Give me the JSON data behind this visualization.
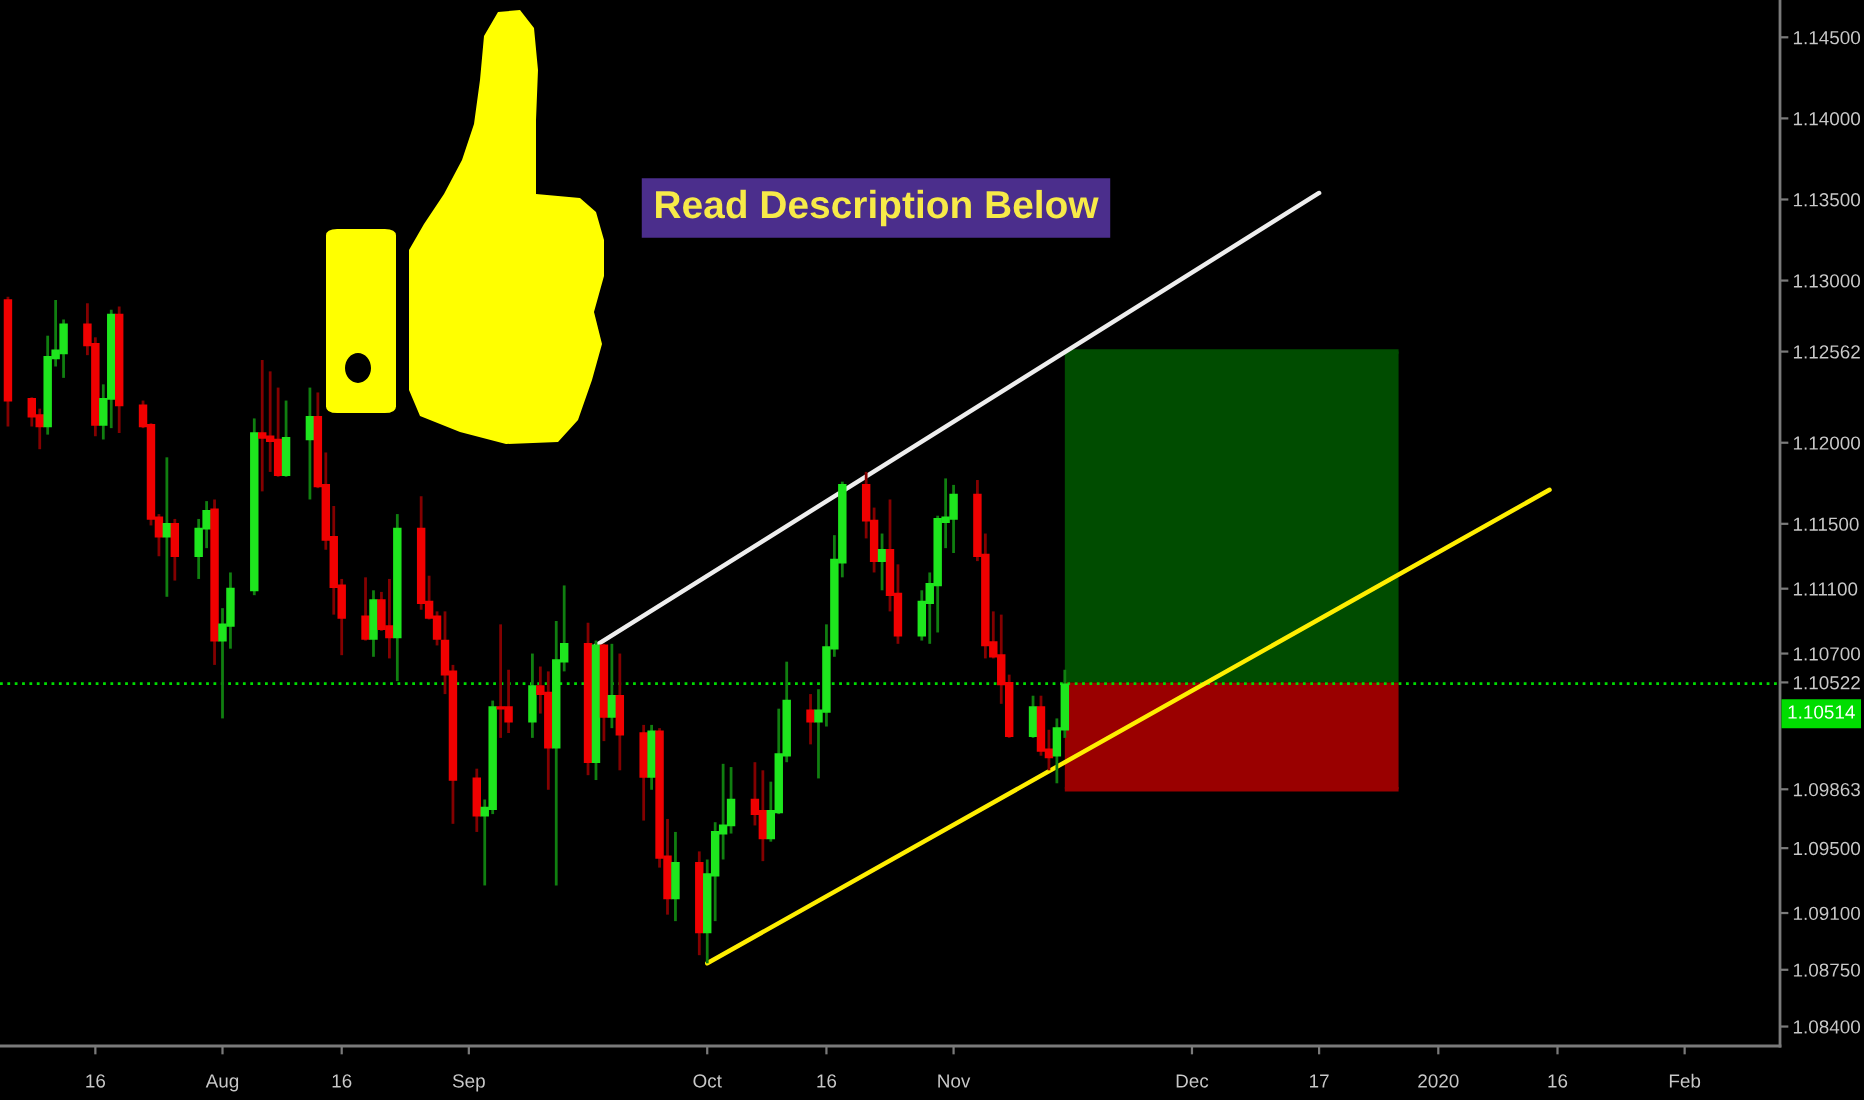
{
  "chart_data": {
    "type": "candlestick",
    "x": [
      "2019-07-05",
      "2019-07-08",
      "2019-07-09",
      "2019-07-10",
      "2019-07-11",
      "2019-07-12",
      "2019-07-15",
      "2019-07-16",
      "2019-07-17",
      "2019-07-18",
      "2019-07-19",
      "2019-07-22",
      "2019-07-23",
      "2019-07-24",
      "2019-07-25",
      "2019-07-26",
      "2019-07-29",
      "2019-07-30",
      "2019-07-31",
      "2019-08-01",
      "2019-08-02",
      "2019-08-05",
      "2019-08-06",
      "2019-08-07",
      "2019-08-08",
      "2019-08-09",
      "2019-08-12",
      "2019-08-13",
      "2019-08-14",
      "2019-08-15",
      "2019-08-16",
      "2019-08-19",
      "2019-08-20",
      "2019-08-21",
      "2019-08-22",
      "2019-08-23",
      "2019-08-26",
      "2019-08-27",
      "2019-08-28",
      "2019-08-29",
      "2019-08-30",
      "2019-09-02",
      "2019-09-03",
      "2019-09-04",
      "2019-09-05",
      "2019-09-06",
      "2019-09-09",
      "2019-09-10",
      "2019-09-11",
      "2019-09-12",
      "2019-09-13",
      "2019-09-16",
      "2019-09-17",
      "2019-09-18",
      "2019-09-19",
      "2019-09-20",
      "2019-09-23",
      "2019-09-24",
      "2019-09-25",
      "2019-09-26",
      "2019-09-27",
      "2019-09-30",
      "2019-10-01",
      "2019-10-02",
      "2019-10-03",
      "2019-10-04",
      "2019-10-07",
      "2019-10-08",
      "2019-10-09",
      "2019-10-10",
      "2019-10-11",
      "2019-10-14",
      "2019-10-15",
      "2019-10-16",
      "2019-10-17",
      "2019-10-18",
      "2019-10-21",
      "2019-10-22",
      "2019-10-23",
      "2019-10-24",
      "2019-10-25",
      "2019-10-28",
      "2019-10-29",
      "2019-10-30",
      "2019-10-31",
      "2019-11-01",
      "2019-11-04",
      "2019-11-05",
      "2019-11-06",
      "2019-11-07",
      "2019-11-08",
      "2019-11-11",
      "2019-11-12",
      "2019-11-13",
      "2019-11-14",
      "2019-11-15"
    ],
    "ohlc": [
      [
        1.1288,
        1.129,
        1.121,
        1.1226
      ],
      [
        1.1227,
        1.1228,
        1.121,
        1.1216
      ],
      [
        1.1217,
        1.1221,
        1.1196,
        1.121
      ],
      [
        1.121,
        1.1266,
        1.1205,
        1.1253
      ],
      [
        1.1252,
        1.1288,
        1.1247,
        1.1257
      ],
      [
        1.1255,
        1.1276,
        1.124,
        1.1273
      ],
      [
        1.1273,
        1.1286,
        1.1254,
        1.126
      ],
      [
        1.1261,
        1.1265,
        1.1204,
        1.1211
      ],
      [
        1.1211,
        1.1236,
        1.1202,
        1.1227
      ],
      [
        1.1227,
        1.1282,
        1.1209,
        1.1279
      ],
      [
        1.1279,
        1.1284,
        1.1206,
        1.1223
      ],
      [
        1.1223,
        1.1226,
        1.1209,
        1.121
      ],
      [
        1.1211,
        1.1212,
        1.1149,
        1.1153
      ],
      [
        1.1154,
        1.1156,
        1.113,
        1.1142
      ],
      [
        1.1142,
        1.1191,
        1.1105,
        1.115
      ],
      [
        1.115,
        1.1153,
        1.1115,
        1.113
      ],
      [
        1.113,
        1.1153,
        1.1116,
        1.1147
      ],
      [
        1.1147,
        1.1164,
        1.1135,
        1.1158
      ],
      [
        1.1159,
        1.1165,
        1.1063,
        1.1078
      ],
      [
        1.1078,
        1.1098,
        1.103,
        1.1088
      ],
      [
        1.1087,
        1.112,
        1.1073,
        1.111
      ],
      [
        1.1109,
        1.1215,
        1.1106,
        1.1206
      ],
      [
        1.1206,
        1.1251,
        1.117,
        1.1203
      ],
      [
        1.1204,
        1.1244,
        1.1182,
        1.1201
      ],
      [
        1.1202,
        1.1234,
        1.1179,
        1.118
      ],
      [
        1.118,
        1.1226,
        1.1179,
        1.1203
      ],
      [
        1.1202,
        1.1234,
        1.1165,
        1.1216
      ],
      [
        1.1216,
        1.1231,
        1.1172,
        1.1173
      ],
      [
        1.1174,
        1.1194,
        1.1134,
        1.114
      ],
      [
        1.1142,
        1.1161,
        1.1094,
        1.1111
      ],
      [
        1.1112,
        1.1116,
        1.1069,
        1.1092
      ],
      [
        1.1093,
        1.1117,
        1.1078,
        1.1079
      ],
      [
        1.1079,
        1.1109,
        1.1068,
        1.1103
      ],
      [
        1.1103,
        1.1108,
        1.1084,
        1.1085
      ],
      [
        1.1087,
        1.1116,
        1.1067,
        1.108
      ],
      [
        1.108,
        1.1156,
        1.1053,
        1.1147
      ],
      [
        1.1147,
        1.1167,
        1.1097,
        1.1101
      ],
      [
        1.1102,
        1.1118,
        1.1091,
        1.1092
      ],
      [
        1.1093,
        1.1096,
        1.1075,
        1.1079
      ],
      [
        1.1078,
        1.1096,
        1.1045,
        1.1057
      ],
      [
        1.1059,
        1.1063,
        1.0965,
        1.0992
      ],
      [
        1.0993,
        1.0999,
        1.096,
        1.097
      ],
      [
        1.097,
        1.098,
        1.0927,
        1.0975
      ],
      [
        1.0974,
        1.1041,
        1.0971,
        1.1037
      ],
      [
        1.1037,
        1.1088,
        1.1018,
        1.1036
      ],
      [
        1.1037,
        1.106,
        1.1021,
        1.1028
      ],
      [
        1.1028,
        1.107,
        1.1018,
        1.105
      ],
      [
        1.105,
        1.1062,
        1.1033,
        1.1045
      ],
      [
        1.1046,
        1.1059,
        1.0986,
        1.1012
      ],
      [
        1.1012,
        1.109,
        1.0927,
        1.1066
      ],
      [
        1.1065,
        1.1112,
        1.1059,
        1.1076
      ],
      [
        1.1076,
        1.1089,
        1.0995,
        1.1003
      ],
      [
        1.1003,
        1.1078,
        1.0992,
        1.1075
      ],
      [
        1.1075,
        1.1076,
        1.1016,
        1.1031
      ],
      [
        1.1031,
        1.1076,
        1.1024,
        1.1044
      ],
      [
        1.1044,
        1.107,
        1.0998,
        1.102
      ],
      [
        1.1021,
        1.1026,
        1.0967,
        1.0994
      ],
      [
        1.0994,
        1.1026,
        1.0986,
        1.1022
      ],
      [
        1.1022,
        1.1024,
        1.0938,
        1.0944
      ],
      [
        1.0945,
        1.0968,
        1.0909,
        1.0919
      ],
      [
        1.0919,
        1.096,
        1.0905,
        1.0941
      ],
      [
        1.0941,
        1.0948,
        1.0884,
        1.0898
      ],
      [
        1.0898,
        1.0943,
        1.0879,
        1.0934
      ],
      [
        1.0933,
        1.0966,
        1.0905,
        1.096
      ],
      [
        1.0959,
        1.1002,
        1.0943,
        1.0964
      ],
      [
        1.0964,
        1.1,
        1.0959,
        1.098
      ],
      [
        1.098,
        1.1003,
        1.0964,
        1.0971
      ],
      [
        1.0973,
        1.0998,
        1.0942,
        1.0956
      ],
      [
        1.0956,
        1.0991,
        1.0954,
        1.0973
      ],
      [
        1.0972,
        1.1036,
        1.0971,
        1.1008
      ],
      [
        1.1007,
        1.1065,
        1.1003,
        1.1041
      ],
      [
        1.1035,
        1.1045,
        1.1014,
        1.1028
      ],
      [
        1.1028,
        1.1048,
        1.0993,
        1.1035
      ],
      [
        1.1034,
        1.1088,
        1.1025,
        1.1074
      ],
      [
        1.1073,
        1.1143,
        1.1068,
        1.1128
      ],
      [
        1.1126,
        1.1176,
        1.1117,
        1.1174
      ],
      [
        1.1174,
        1.1182,
        1.1141,
        1.1152
      ],
      [
        1.1152,
        1.116,
        1.112,
        1.1127
      ],
      [
        1.1127,
        1.1144,
        1.1109,
        1.1134
      ],
      [
        1.1134,
        1.1165,
        1.1096,
        1.1106
      ],
      [
        1.1107,
        1.1125,
        1.1076,
        1.1081
      ],
      [
        1.1081,
        1.1109,
        1.1078,
        1.1102
      ],
      [
        1.1101,
        1.112,
        1.1076,
        1.1113
      ],
      [
        1.1112,
        1.1155,
        1.1083,
        1.1153
      ],
      [
        1.1151,
        1.1178,
        1.1135,
        1.1154
      ],
      [
        1.1153,
        1.1174,
        1.1132,
        1.1168
      ],
      [
        1.1168,
        1.1177,
        1.1127,
        1.113
      ],
      [
        1.1131,
        1.1144,
        1.1067,
        1.1075
      ],
      [
        1.1077,
        1.1096,
        1.1067,
        1.1068
      ],
      [
        1.1069,
        1.1094,
        1.1039,
        1.1051
      ],
      [
        1.1052,
        1.1057,
        1.1018,
        1.1019
      ],
      [
        1.1019,
        1.1044,
        1.1018,
        1.1037
      ],
      [
        1.1037,
        1.1044,
        1.1007,
        1.101
      ],
      [
        1.1011,
        1.1023,
        1.0998,
        1.1006
      ],
      [
        1.1007,
        1.103,
        1.099,
        1.1024
      ],
      [
        1.1023,
        1.106,
        1.1018,
        1.1051
      ]
    ],
    "colors": [
      "#f00000",
      "#f00000",
      "#f00000",
      "#1ee61e",
      "#1ee61e",
      "#1ee61e",
      "#f00000",
      "#f00000",
      "#1ee61e",
      "#1ee61e",
      "#f00000",
      "#f00000",
      "#f00000",
      "#f00000",
      "#1ee61e",
      "#f00000",
      "#1ee61e",
      "#1ee61e",
      "#f00000",
      "#1ee61e",
      "#1ee61e",
      "#1ee61e",
      "#f00000",
      "#f00000",
      "#f00000",
      "#1ee61e",
      "#1ee61e",
      "#f00000",
      "#f00000",
      "#f00000",
      "#f00000",
      "#f00000",
      "#1ee61e",
      "#f00000",
      "#f00000",
      "#1ee61e",
      "#f00000",
      "#f00000",
      "#f00000",
      "#f00000",
      "#f00000",
      "#f00000",
      "#1ee61e",
      "#1ee61e",
      "#f00000",
      "#f00000",
      "#1ee61e",
      "#f00000",
      "#f00000",
      "#1ee61e",
      "#1ee61e",
      "#f00000",
      "#1ee61e",
      "#f00000",
      "#1ee61e",
      "#f00000",
      "#f00000",
      "#1ee61e",
      "#f00000",
      "#f00000",
      "#1ee61e",
      "#f00000",
      "#1ee61e",
      "#1ee61e",
      "#1ee61e",
      "#1ee61e",
      "#f00000",
      "#f00000",
      "#1ee61e",
      "#1ee61e",
      "#1ee61e",
      "#f00000",
      "#1ee61e",
      "#1ee61e",
      "#1ee61e",
      "#1ee61e",
      "#f00000",
      "#f00000",
      "#1ee61e",
      "#f00000",
      "#f00000",
      "#1ee61e",
      "#1ee61e",
      "#1ee61e",
      "#1ee61e",
      "#1ee61e",
      "#f00000",
      "#f00000",
      "#f00000",
      "#f00000",
      "#f00000",
      "#1ee61e",
      "#f00000",
      "#f00000",
      "#1ee61e",
      "#1ee61e"
    ],
    "series": [
      {
        "type": "line",
        "x": [
          "2019-11-15",
          "2019-12-27"
        ],
        "values": [
          1.12562,
          1.12562
        ],
        "lower": [
          1.10522,
          1.10522
        ],
        "upper": [
          1.12562,
          1.12562
        ],
        "color": "#004c00"
      },
      {
        "type": "line",
        "x": [
          "2019-11-15",
          "2019-12-27"
        ],
        "values": [
          1.09863,
          1.09863
        ],
        "lower": [
          1.09863,
          1.09863
        ],
        "upper": [
          1.10522,
          1.10522
        ],
        "color": "#9a0000"
      },
      {
        "type": "line",
        "x": [
          "2019-09-17",
          "2019-12-17"
        ],
        "values": [
          1.1075,
          1.1354
        ],
        "color": "#eeeeee"
      },
      {
        "type": "line",
        "x": [
          "2019-10-01",
          "2020-01-15"
        ],
        "values": [
          1.0879,
          1.1171
        ],
        "color": "#ffee00"
      }
    ],
    "xlim": [
      "2019-07-04",
      "2020-02-13"
    ],
    "ylim": [
      1.0828,
      1.1473
    ],
    "xticks": [
      {
        "value": "2019-07-16",
        "label": "16"
      },
      {
        "value": "2019-08-01",
        "label": "Aug"
      },
      {
        "value": "2019-08-16",
        "label": "16"
      },
      {
        "value": "2019-09-01",
        "label": "Sep"
      },
      {
        "value": "2019-10-01",
        "label": "Oct"
      },
      {
        "value": "2019-10-16",
        "label": "16"
      },
      {
        "value": "2019-11-01",
        "label": "Nov"
      },
      {
        "value": "2019-12-01",
        "label": "Dec"
      },
      {
        "value": "2019-12-17",
        "label": "17"
      },
      {
        "value": "2020-01-01",
        "label": "2020"
      },
      {
        "value": "2020-01-16",
        "label": "16"
      },
      {
        "value": "2020-02-01",
        "label": "Feb"
      }
    ],
    "yticks": [
      {
        "value": 1.145,
        "label": "1.14500"
      },
      {
        "value": 1.14,
        "label": "1.14000"
      },
      {
        "value": 1.135,
        "label": "1.13500"
      },
      {
        "value": 1.13,
        "label": "1.13000"
      },
      1.12562,
      {
        "value": 1.12,
        "label": "1.12000"
      },
      {
        "value": 1.115,
        "label": "1.11500"
      },
      {
        "value": 1.111,
        "label": "1.11100"
      },
      {
        "value": 1.107,
        "label": "1.10700"
      },
      1.10522,
      1.09863,
      {
        "value": 1.095,
        "label": "1.09500"
      },
      {
        "value": 1.091,
        "label": "1.09100"
      },
      {
        "value": 1.0875,
        "label": "1.08750"
      },
      {
        "value": 1.084,
        "label": "1.08400"
      }
    ],
    "ref_lines": [
      {
        "axis": "y",
        "value": 1.10514,
        "label": "1.10514",
        "color": "#00dd00",
        "line_style": "dotted"
      }
    ],
    "annotations": [
      "Read Description Below"
    ]
  }
}
